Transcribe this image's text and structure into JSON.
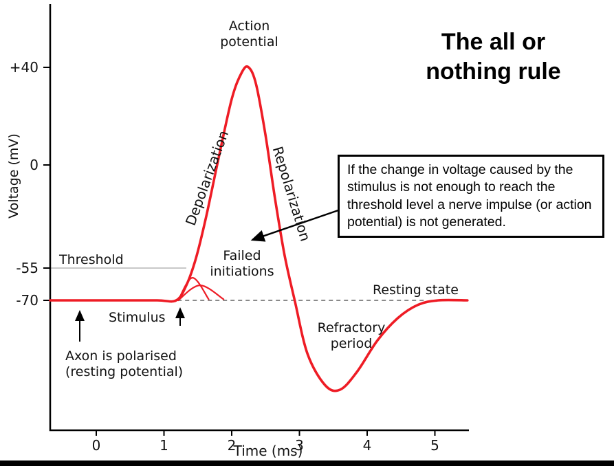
{
  "title": "The all or\nnothing rule",
  "colors": {
    "curve": "#ee1c25",
    "axis": "#000000",
    "dashed": "#8a8a8a",
    "threshold_line": "#b5b5b5",
    "text": "#111111"
  },
  "infobox": {
    "text": "If the change in voltage caused by the stimulus is not enough to reach the threshold level a nerve impulse (or action potential) is not generated."
  },
  "labels": {
    "action_potential": "Action\npotential",
    "depolarization": "Depolarization",
    "repolarization": "Repolarization",
    "failed_initiations": "Failed\ninitiations",
    "threshold": "Threshold",
    "resting_state": "Resting state",
    "refractory_period": "Refractory\nperiod",
    "stimulus": "Stimulus",
    "axon": "Axon is polarised\n(resting potential)",
    "y_axis": "Voltage (mV)",
    "x_axis": "Time (ms)"
  },
  "chart_data": {
    "type": "line",
    "title": "The all or nothing rule",
    "xlabel": "Time (ms)",
    "ylabel": "Voltage (mV)",
    "x_range": [
      -0.68,
      5.5
    ],
    "x_ticks": [
      0,
      1,
      2,
      3,
      4,
      5
    ],
    "y_ticks": [
      {
        "value": 40,
        "label": "+40"
      },
      {
        "value": 0,
        "label": "0"
      },
      {
        "value": -55,
        "label": "-55"
      },
      {
        "value": -70,
        "label": "-70"
      }
    ],
    "key_values": {
      "resting_potential_mV": -70,
      "threshold_mV": -55,
      "peak_mV": 40
    },
    "threshold_line": {
      "from_ms": -0.68,
      "to_ms": 1.33,
      "at_mV": -55
    },
    "baseline_dashed": {
      "from_ms": 1.2,
      "to_ms": 4.85,
      "at_mV": -70
    },
    "series": [
      {
        "name": "membrane-potential",
        "points": [
          [
            -0.68,
            -70
          ],
          [
            0.3,
            -70
          ],
          [
            0.9,
            -70
          ],
          [
            1.18,
            -70
          ],
          [
            1.33,
            -63
          ],
          [
            1.47,
            -50
          ],
          [
            1.62,
            -28
          ],
          [
            1.8,
            2
          ],
          [
            2.0,
            27
          ],
          [
            2.15,
            38
          ],
          [
            2.25,
            40
          ],
          [
            2.36,
            33
          ],
          [
            2.5,
            12
          ],
          [
            2.64,
            -18
          ],
          [
            2.78,
            -48
          ],
          [
            2.93,
            -70
          ],
          [
            3.12,
            -82
          ],
          [
            3.38,
            -89
          ],
          [
            3.6,
            -90
          ],
          [
            3.85,
            -86
          ],
          [
            4.15,
            -79
          ],
          [
            4.45,
            -74
          ],
          [
            4.75,
            -71
          ],
          [
            5.05,
            -70
          ],
          [
            5.48,
            -70
          ]
        ]
      },
      {
        "name": "failed-initiation-1",
        "points": [
          [
            1.21,
            -70
          ],
          [
            1.42,
            -59.5
          ],
          [
            1.66,
            -69.5
          ]
        ]
      },
      {
        "name": "failed-initiation-2",
        "points": [
          [
            1.21,
            -70
          ],
          [
            1.53,
            -63
          ],
          [
            1.88,
            -69.5
          ]
        ]
      }
    ]
  }
}
